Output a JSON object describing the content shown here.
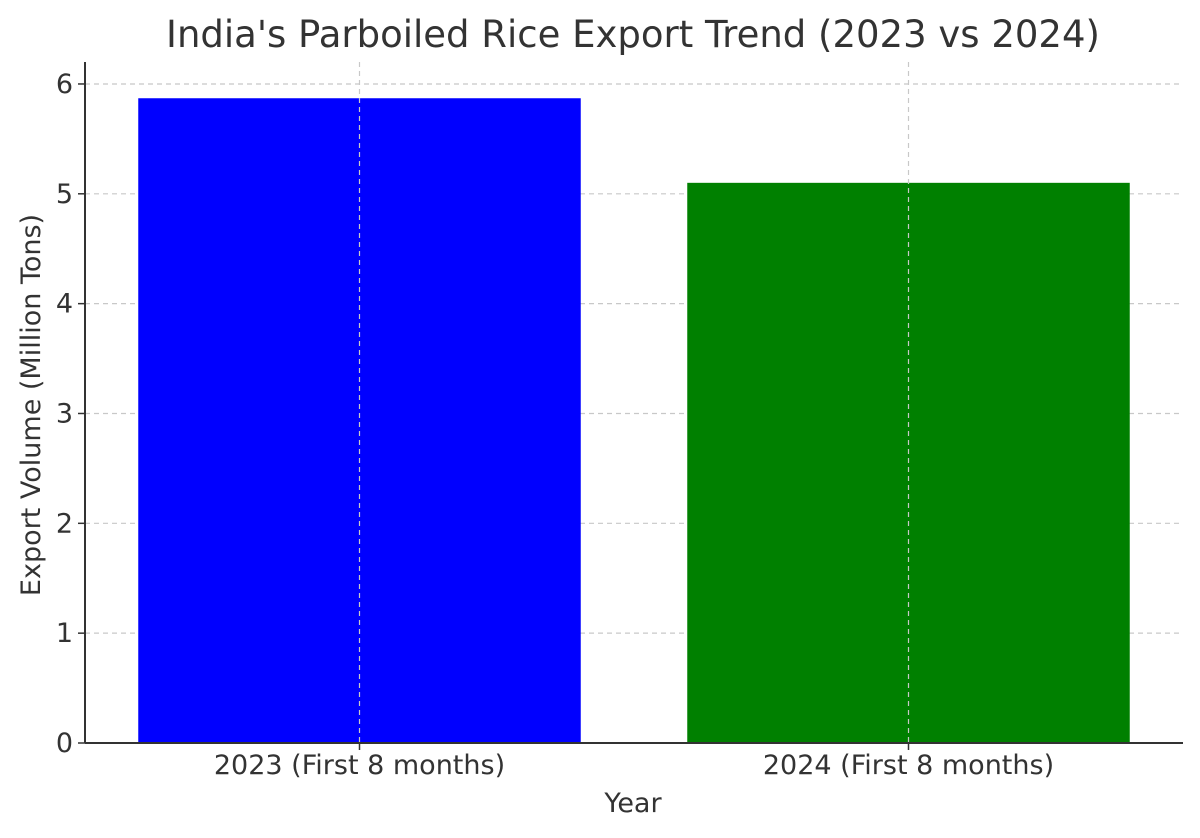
{
  "chart_data": {
    "type": "bar",
    "title": "India's Parboiled Rice Export Trend (2023 vs 2024)",
    "xlabel": "Year",
    "ylabel": "Export Volume (Million Tons)",
    "categories": [
      "2023 (First 8 months)",
      "2024 (First 8 months)"
    ],
    "values": [
      5.87,
      5.1
    ],
    "colors": [
      "#0000ff",
      "#008000"
    ],
    "ylim": [
      0,
      6.2
    ],
    "yticks": [
      0,
      1,
      2,
      3,
      4,
      5,
      6
    ],
    "grid": true,
    "legend": "none"
  }
}
